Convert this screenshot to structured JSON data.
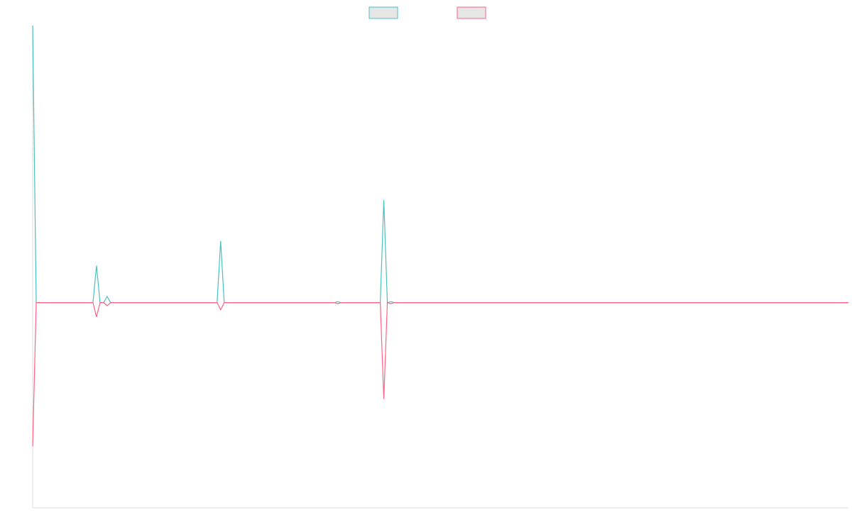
{
  "chart_data": {
    "type": "line",
    "title": "",
    "xlabel": "",
    "ylabel": "",
    "x": [
      0,
      1,
      2,
      3,
      4,
      5,
      6,
      7,
      8,
      9,
      10,
      11,
      12,
      13,
      14,
      15,
      16,
      17,
      18,
      19,
      20,
      21,
      22,
      23,
      24,
      25,
      26,
      27,
      28,
      29,
      30,
      31,
      32,
      33,
      34,
      35,
      36,
      37,
      38,
      39,
      40,
      41,
      42,
      43,
      44,
      45,
      46,
      47,
      48,
      49,
      50,
      51,
      52,
      53,
      54,
      55,
      56,
      57,
      58,
      59,
      60,
      61,
      62,
      63,
      64,
      65,
      66,
      67,
      68,
      69,
      70,
      71,
      72,
      73,
      74,
      75,
      76,
      77,
      78,
      79,
      80,
      81,
      82,
      83,
      84,
      85,
      86,
      87,
      88,
      89,
      90,
      91,
      92,
      93,
      94,
      95,
      96,
      97,
      98,
      99,
      100,
      101,
      102,
      103,
      104,
      105,
      106,
      107,
      108,
      109,
      110,
      111,
      112,
      113,
      114,
      115,
      116,
      117,
      118,
      119,
      120,
      121,
      122,
      123,
      124,
      125,
      126,
      127,
      128,
      129,
      130,
      131,
      132,
      133,
      134,
      135,
      136,
      137,
      138,
      139,
      140,
      141,
      142,
      143,
      144,
      145,
      146,
      147,
      148,
      149,
      150,
      151,
      152,
      153,
      154,
      155,
      156,
      157,
      158,
      159,
      160,
      161,
      162,
      163,
      164,
      165,
      166,
      167,
      168,
      169,
      170,
      171,
      172,
      173,
      174,
      175,
      176,
      177,
      178,
      179,
      180,
      181,
      182,
      183,
      184,
      185,
      186,
      187,
      188,
      189,
      190,
      191,
      192,
      193,
      194,
      195,
      196,
      197,
      198,
      199,
      200,
      201,
      202,
      203,
      204,
      205,
      206,
      207,
      208,
      209,
      210,
      211,
      212,
      213,
      214,
      215,
      216,
      217,
      218,
      219,
      220,
      221,
      222,
      223,
      224,
      225,
      226,
      227,
      228,
      229,
      230
    ],
    "xlim": [
      0,
      230
    ],
    "ylim": [
      -1,
      1.35
    ],
    "grid": false,
    "legend_position": "top-center",
    "series": [
      {
        "color": "#4BC0C0",
        "fill": "#E6E6E6",
        "nonzero": {
          "0": 1.35,
          "18": 0.18,
          "21": 0.03,
          "53": 0.3,
          "86": 0.005,
          "99": 0.5,
          "101": 0.005
        }
      },
      {
        "color": "#FF6384",
        "fill": "#E6E6E6",
        "nonzero": {
          "0": -0.7,
          "18": -0.07,
          "21": -0.015,
          "53": -0.035,
          "86": -0.005,
          "99": -0.47,
          "101": -0.005
        }
      }
    ]
  }
}
